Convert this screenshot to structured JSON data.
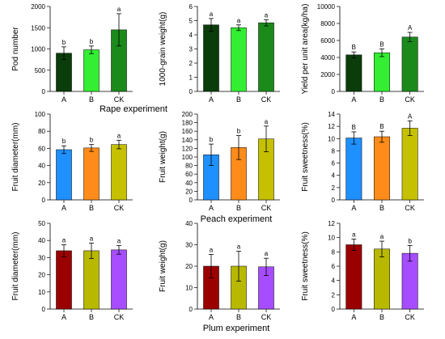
{
  "section_titles": {
    "rape": "Rape experiment",
    "peach": "Peach experiment",
    "plum": "Plum experiment"
  },
  "chart_data": [
    {
      "type": "bar",
      "section": "rape",
      "ylabel": "Pod number",
      "ylim": [
        0,
        2000
      ],
      "yticks": [
        0,
        500,
        1000,
        1500,
        2000
      ],
      "categories": [
        "A",
        "B",
        "CK"
      ],
      "values": [
        900,
        980,
        1450
      ],
      "errors": [
        150,
        90,
        380
      ],
      "letters": [
        "b",
        "b",
        "a"
      ],
      "colors": [
        "#0b3d0b",
        "#33ee33",
        "#1b8a1b"
      ]
    },
    {
      "type": "bar",
      "section": "rape",
      "ylabel": "1000-grain weight(g)",
      "ylim": [
        0,
        6
      ],
      "yticks": [
        0,
        1,
        2,
        3,
        4,
        5,
        6
      ],
      "categories": [
        "A",
        "B",
        "CK"
      ],
      "values": [
        4.7,
        4.5,
        4.85
      ],
      "errors": [
        0.45,
        0.2,
        0.22
      ],
      "letters": [
        "a",
        "a",
        "a"
      ],
      "colors": [
        "#0b3d0b",
        "#33ee33",
        "#1b8a1b"
      ]
    },
    {
      "type": "bar",
      "section": "rape",
      "ylabel": "Yield per unit area(kg/ha)",
      "ylim": [
        0,
        10000
      ],
      "yticks": [
        0,
        2000,
        4000,
        6000,
        8000,
        10000
      ],
      "categories": [
        "A",
        "B",
        "CK"
      ],
      "values": [
        4300,
        4550,
        6400
      ],
      "errors": [
        350,
        450,
        550
      ],
      "letters": [
        "B",
        "B",
        "A"
      ],
      "colors": [
        "#0b3d0b",
        "#33ee33",
        "#1b8a1b"
      ]
    },
    {
      "type": "bar",
      "section": "peach",
      "ylabel": "Fruit diameter(mm)",
      "ylim": [
        0,
        100
      ],
      "yticks": [
        0,
        20,
        40,
        60,
        80,
        100
      ],
      "categories": [
        "A",
        "B",
        "CK"
      ],
      "values": [
        58.5,
        60.5,
        64.5
      ],
      "errors": [
        4.5,
        4,
        5
      ],
      "letters": [
        "b",
        "b",
        "a"
      ],
      "colors": [
        "#1e90ff",
        "#ff8c1a",
        "#c5c000"
      ]
    },
    {
      "type": "bar",
      "section": "peach",
      "ylabel": "Fruit weight(g)",
      "ylim": [
        0,
        200
      ],
      "yticks": [
        0,
        20,
        40,
        60,
        80,
        100,
        120,
        140,
        160,
        180,
        200
      ],
      "categories": [
        "A",
        "B",
        "CK"
      ],
      "values": [
        105,
        122,
        142
      ],
      "errors": [
        25,
        28,
        30
      ],
      "letters": [
        "b",
        "b",
        "a"
      ],
      "colors": [
        "#1e90ff",
        "#ff8c1a",
        "#c5c000"
      ]
    },
    {
      "type": "bar",
      "section": "peach",
      "ylabel": "Fruit sweetness(%)",
      "ylim": [
        0,
        14
      ],
      "yticks": [
        0,
        2,
        4,
        6,
        8,
        10,
        12,
        14
      ],
      "categories": [
        "A",
        "B",
        "CK"
      ],
      "values": [
        10.1,
        10.3,
        11.7
      ],
      "errors": [
        1.0,
        0.9,
        1.2
      ],
      "letters": [
        "B",
        "B",
        "A"
      ],
      "colors": [
        "#1e90ff",
        "#ff8c1a",
        "#c5c000"
      ]
    },
    {
      "type": "bar",
      "section": "plum",
      "ylabel": "Fruit diameter(mm)",
      "ylim": [
        0,
        50
      ],
      "yticks": [
        0,
        10,
        20,
        30,
        40,
        50
      ],
      "categories": [
        "A",
        "B",
        "CK"
      ],
      "values": [
        34,
        34,
        34.5
      ],
      "errors": [
        3.5,
        4.5,
        2.5
      ],
      "letters": [
        "a",
        "a",
        "a"
      ],
      "colors": [
        "#9b0000",
        "#b8b800",
        "#a64dff"
      ]
    },
    {
      "type": "bar",
      "section": "plum",
      "ylabel": "Fruit weight(g)",
      "ylim": [
        0,
        40
      ],
      "yticks": [
        0,
        10,
        20,
        30,
        40
      ],
      "categories": [
        "A",
        "B",
        "CK"
      ],
      "values": [
        20,
        20,
        19.7
      ],
      "errors": [
        5.5,
        7,
        4
      ],
      "letters": [
        "a",
        "a",
        "a"
      ],
      "colors": [
        "#9b0000",
        "#b8b800",
        "#a64dff"
      ]
    },
    {
      "type": "bar",
      "section": "plum",
      "ylabel": "Fruit sweetness(%)",
      "ylim": [
        0,
        12
      ],
      "yticks": [
        0,
        2,
        4,
        6,
        8,
        10,
        12
      ],
      "categories": [
        "A",
        "B",
        "CK"
      ],
      "values": [
        9.0,
        8.4,
        7.8
      ],
      "errors": [
        0.8,
        1.1,
        1.1
      ],
      "letters": [
        "a",
        "a",
        "b"
      ],
      "colors": [
        "#9b0000",
        "#b8b800",
        "#a64dff"
      ]
    }
  ]
}
